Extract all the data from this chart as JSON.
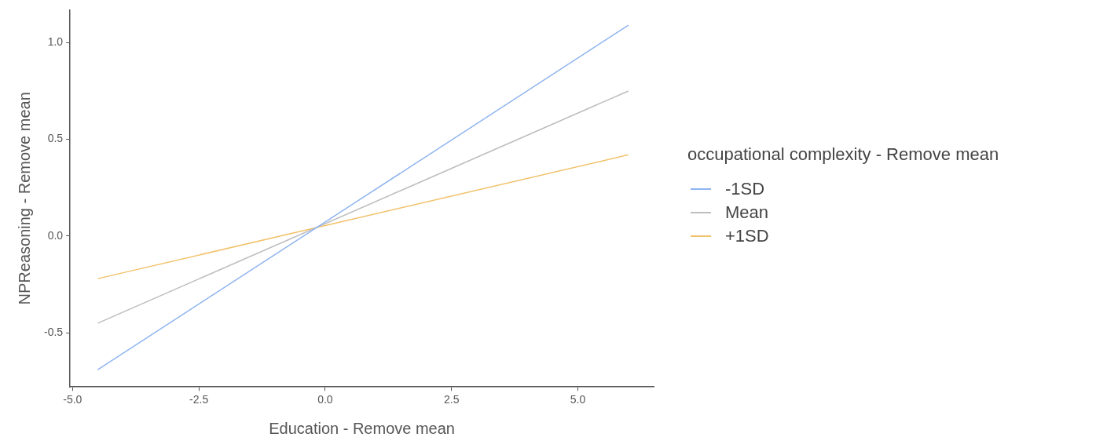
{
  "chart_data": {
    "type": "line",
    "xlabel": "Education - Remove mean",
    "ylabel": "NPReasoning - Remove mean",
    "legend_title": "occupational complexity - Remove mean",
    "legend": "right",
    "grid": false,
    "marker": "none",
    "line_style": "solid",
    "x": [
      -4.5,
      6.0
    ],
    "xlim": [
      -5.05,
      6.5
    ],
    "xticks": [
      {
        "value": -5,
        "label": "-5.0"
      },
      {
        "value": -2.5,
        "label": "-2.5"
      },
      {
        "value": 0,
        "label": "0.0"
      },
      {
        "value": 2.5,
        "label": "2.5"
      },
      {
        "value": 5,
        "label": "5.0"
      }
    ],
    "ylim": [
      -0.78,
      1.17
    ],
    "yticks": [
      {
        "value": -0.5,
        "label": "-0.5"
      },
      {
        "value": 0,
        "label": "0.0"
      },
      {
        "value": 0.5,
        "label": "0.5"
      },
      {
        "value": 1,
        "label": "1.0"
      }
    ],
    "series": [
      {
        "name": "-1SD",
        "color": "#8fb4f0",
        "values": [
          -0.69,
          1.09
        ]
      },
      {
        "name": "Mean",
        "color": "#bdbdbd",
        "values": [
          -0.45,
          0.75
        ]
      },
      {
        "name": "+1SD",
        "color": "#f2c26b",
        "values": [
          -0.22,
          0.42
        ]
      }
    ]
  }
}
